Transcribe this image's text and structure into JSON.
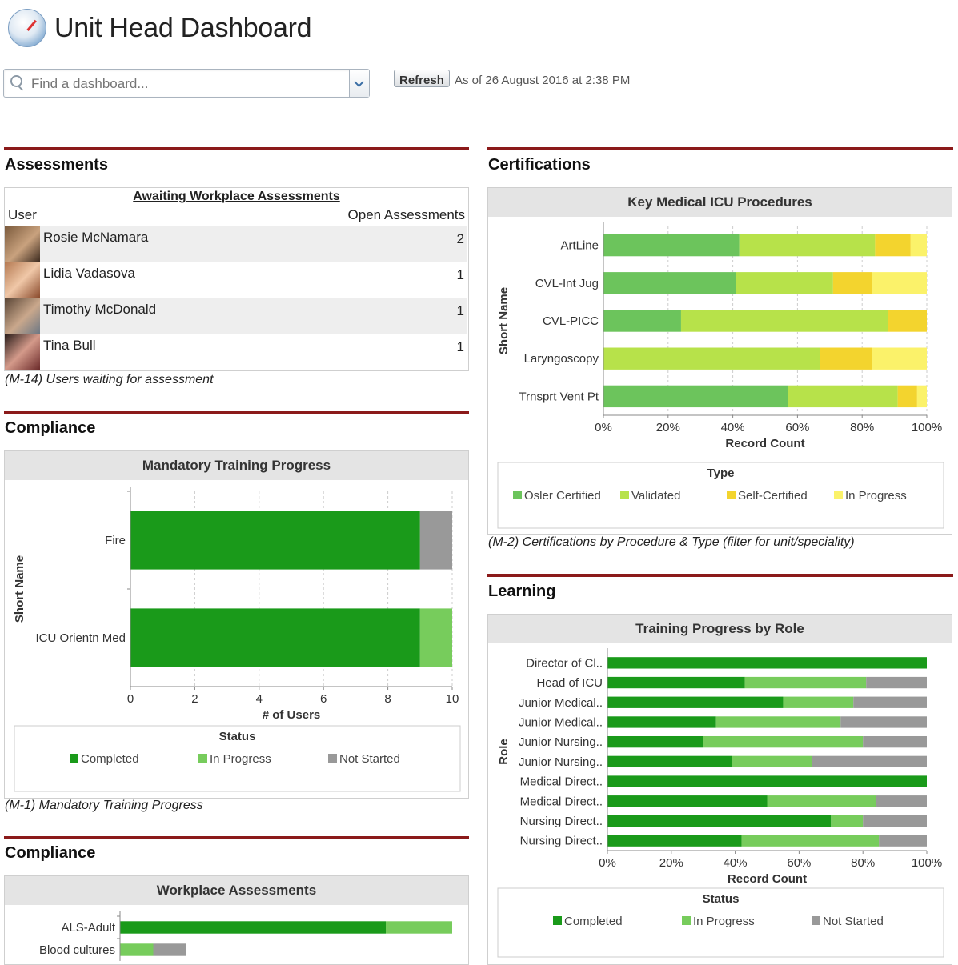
{
  "header": {
    "title": "Unit Head Dashboard",
    "search_placeholder": "Find a dashboard...",
    "refresh_label": "Refresh",
    "as_of": "As of 26 August 2016 at 2:38 PM"
  },
  "colors": {
    "completed": "#1a9a1a",
    "in_progress": "#77cc5c",
    "not_started": "#999999",
    "osler": "#6cc45c",
    "validated": "#b7e24a",
    "self_certified": "#f3d42e",
    "cert_in_progress": "#fbf26a",
    "section_bar": "#8b1a1a"
  },
  "assessments": {
    "section_title": "Assessments",
    "table_title": "Awaiting Workplace Assessments",
    "col_user": "User",
    "col_open": "Open Assessments",
    "rows": [
      {
        "user": "Rosie McNamara",
        "count": "2",
        "avatar": "avatar-rosie"
      },
      {
        "user": "Lidia Vadasova",
        "count": "1",
        "avatar": "avatar-lidia"
      },
      {
        "user": "Timothy McDonald",
        "count": "1",
        "avatar": "avatar-timothy"
      },
      {
        "user": "Tina Bull",
        "count": "1",
        "avatar": "avatar-tina"
      }
    ],
    "caption": "(M-14) Users waiting for assessment"
  },
  "compliance1": {
    "section_title": "Compliance",
    "caption": "(M-1) Mandatory Training Progress"
  },
  "compliance2": {
    "section_title": "Compliance"
  },
  "certifications": {
    "section_title": "Certifications",
    "caption": "(M-2) Certifications by Procedure & Type (filter for unit/speciality)"
  },
  "learning": {
    "section_title": "Learning"
  },
  "chart_data": [
    {
      "id": "mandatory",
      "type": "bar",
      "orientation": "horizontal",
      "stacked": true,
      "title": "Mandatory Training Progress",
      "xlabel": "# of Users",
      "ylabel": "Short Name",
      "xlim": [
        0,
        10
      ],
      "xticks": [
        "0",
        "2",
        "4",
        "6",
        "8",
        "10"
      ],
      "categories": [
        "Fire",
        "ICU Orientn Med"
      ],
      "series": [
        {
          "name": "Completed",
          "color": "#1a9a1a",
          "values": [
            9,
            9
          ]
        },
        {
          "name": "In Progress",
          "color": "#77cc5c",
          "values": [
            0,
            1
          ]
        },
        {
          "name": "Not Started",
          "color": "#999999",
          "values": [
            1,
            0
          ]
        }
      ],
      "legend_title": "Status",
      "legend_position": "bottom"
    },
    {
      "id": "procedures",
      "type": "bar",
      "orientation": "horizontal",
      "stacked": true,
      "percent": true,
      "title": "Key Medical ICU Procedures",
      "xlabel": "Record Count",
      "ylabel": "Short Name",
      "xlim": [
        0,
        100
      ],
      "xticks": [
        "0%",
        "20%",
        "40%",
        "60%",
        "80%",
        "100%"
      ],
      "categories": [
        "ArtLine",
        "CVL-Int Jug",
        "CVL-PICC",
        "Laryngoscopy",
        "Trnsprt Vent Pt"
      ],
      "series": [
        {
          "name": "Osler Certified",
          "color": "#6cc45c",
          "values": [
            42,
            41,
            24,
            0,
            57
          ]
        },
        {
          "name": "Validated",
          "color": "#b7e24a",
          "values": [
            42,
            30,
            64,
            67,
            34
          ]
        },
        {
          "name": "Self-Certified",
          "color": "#f3d42e",
          "values": [
            11,
            12,
            12,
            16,
            6
          ]
        },
        {
          "name": "In Progress",
          "color": "#fbf26a",
          "values": [
            5,
            17,
            0,
            17,
            3
          ]
        }
      ],
      "legend_title": "Type",
      "legend_position": "bottom"
    },
    {
      "id": "workplace",
      "type": "bar",
      "orientation": "horizontal",
      "stacked": true,
      "title": "Workplace Assessments",
      "xlim": [
        0,
        100
      ],
      "categories": [
        "ALS-Adult",
        "Blood cultures"
      ],
      "series": [
        {
          "name": "Completed",
          "color": "#1a9a1a",
          "values": [
            80,
            0
          ]
        },
        {
          "name": "In Progress",
          "color": "#77cc5c",
          "values": [
            20,
            10
          ]
        },
        {
          "name": "Not Started",
          "color": "#999999",
          "values": [
            0,
            10
          ]
        }
      ]
    },
    {
      "id": "role",
      "type": "bar",
      "orientation": "horizontal",
      "stacked": true,
      "percent": true,
      "title": "Training Progress by Role",
      "xlabel": "Record Count",
      "ylabel": "Role",
      "xlim": [
        0,
        100
      ],
      "xticks": [
        "0%",
        "20%",
        "40%",
        "60%",
        "80%",
        "100%"
      ],
      "categories": [
        "Director of Cl..",
        "Head of ICU",
        "Junior Medical..",
        "Junior Medical..",
        "Junior Nursing..",
        "Junior Nursing..",
        "Medical Direct..",
        "Medical Direct..",
        "Nursing Direct..",
        "Nursing Direct.."
      ],
      "series": [
        {
          "name": "Completed",
          "color": "#1a9a1a",
          "values": [
            100,
            43,
            55,
            34,
            30,
            39,
            100,
            50,
            70,
            42
          ]
        },
        {
          "name": "In Progress",
          "color": "#77cc5c",
          "values": [
            0,
            38,
            22,
            39,
            50,
            25,
            0,
            34,
            10,
            43
          ]
        },
        {
          "name": "Not Started",
          "color": "#999999",
          "values": [
            0,
            19,
            23,
            27,
            20,
            36,
            0,
            16,
            20,
            15
          ]
        }
      ],
      "legend_title": "Status",
      "legend_position": "bottom"
    }
  ]
}
